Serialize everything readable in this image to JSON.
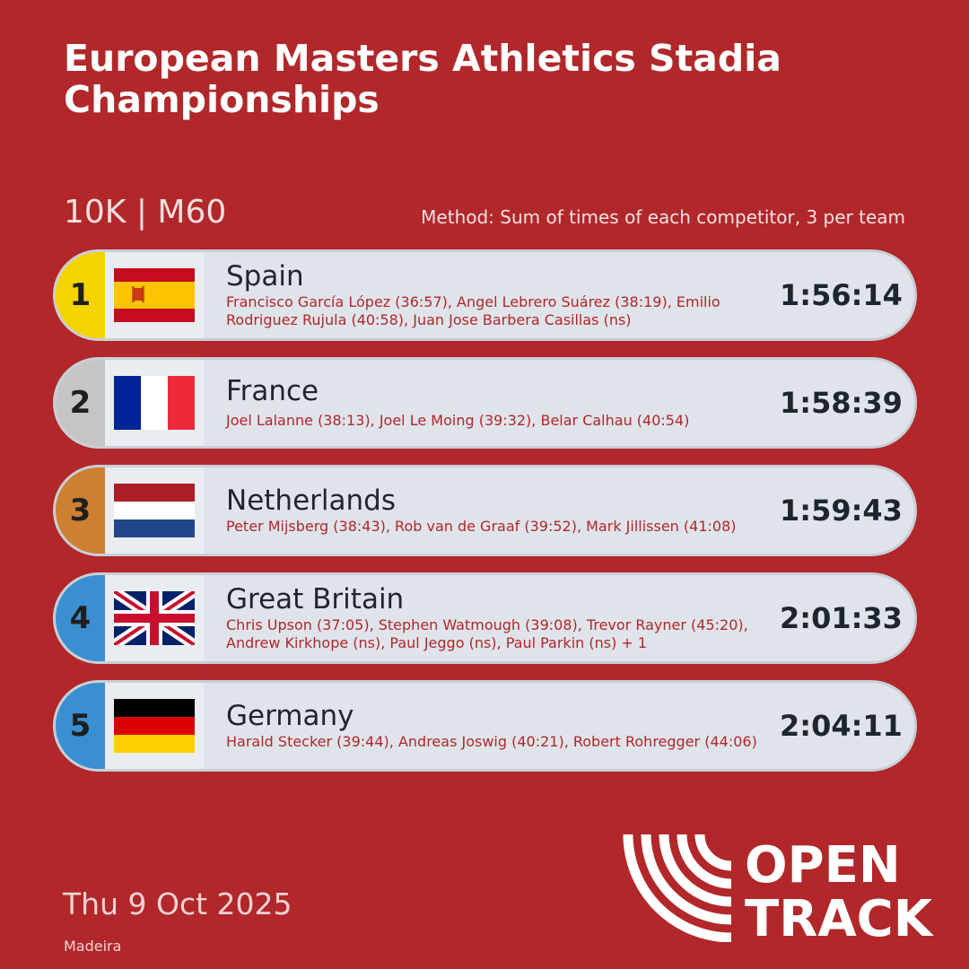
{
  "header": {
    "title": "European Masters Athletics Stadia Championships",
    "event": "10K | M60",
    "method": "Method: Sum of times of each competitor, 3 per team"
  },
  "results": [
    {
      "rank": "1",
      "country": "Spain",
      "flag": "spain-flag",
      "names": "Francisco García López (36:57), Angel Lebrero Suárez (38:19), Emilio Rodriguez Rujula (40:58), Juan Jose Barbera Casillas (ns)",
      "time": "1:56:14",
      "rank_color": "#f5d300"
    },
    {
      "rank": "2",
      "country": "France",
      "flag": "france-flag",
      "names": "Joel Lalanne (38:13), Joel Le Moing (39:32), Belar Calhau (40:54)",
      "time": "1:58:39",
      "rank_color": "#c5c5c5"
    },
    {
      "rank": "3",
      "country": "Netherlands",
      "flag": "netherlands-flag",
      "names": "Peter Mijsberg (38:43), Rob van de Graaf (39:52), Mark Jillissen (41:08)",
      "time": "1:59:43",
      "rank_color": "#cd7f32"
    },
    {
      "rank": "4",
      "country": "Great Britain",
      "flag": "uk-flag",
      "names": "Chris Upson (37:05), Stephen Watmough (39:08), Trevor Rayner (45:20), Andrew Kirkhope (ns), Paul Jeggo (ns), Paul Parkin (ns) + 1",
      "time": "2:01:33",
      "rank_color": "#3a8fd0"
    },
    {
      "rank": "5",
      "country": "Germany",
      "flag": "germany-flag",
      "names": "Harald Stecker (39:44), Andreas Joswig (40:21), Robert Rohregger (44:06)",
      "time": "2:04:11",
      "rank_color": "#3a8fd0"
    }
  ],
  "footer": {
    "date": "Thu 9 Oct 2025",
    "location": "Madeira",
    "logo_line1": "OPEN",
    "logo_line2": "TRACK"
  },
  "colors": {
    "background": "#b1272a",
    "row": "#dfe4ea"
  }
}
